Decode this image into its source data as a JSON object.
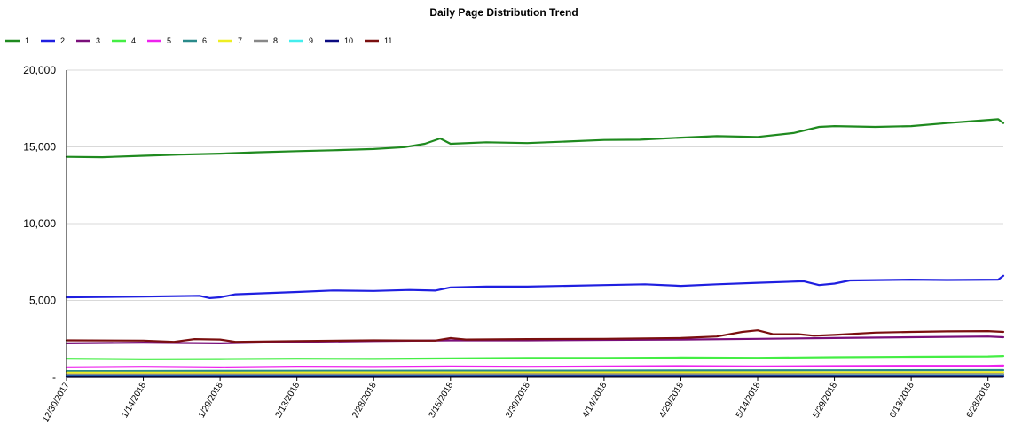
{
  "chart_data": {
    "type": "line",
    "title": "Daily Page Distribution Trend",
    "xlabel": "",
    "ylabel": "",
    "ylim": [
      0,
      20000
    ],
    "yticks": [
      0,
      5000,
      10000,
      15000,
      20000
    ],
    "ytick_labels": [
      "-",
      "5,000",
      "10,000",
      "15,000",
      "20,000"
    ],
    "x_start": "2017-12-30",
    "x_end": "2018-07-01",
    "xtick_labels": [
      "12/30/2017",
      "1/14/2018",
      "1/29/2018",
      "2/13/2018",
      "2/28/2018",
      "3/15/2018",
      "3/30/2018",
      "4/14/2018",
      "4/29/2018",
      "5/14/2018",
      "5/29/2018",
      "6/13/2018",
      "6/28/2018"
    ],
    "grid": true,
    "legend_position": "top-left",
    "series": [
      {
        "name": "1",
        "color": "#1f8a1f",
        "points": [
          [
            "2017-12-30",
            14350
          ],
          [
            "2018-01-06",
            14330
          ],
          [
            "2018-01-14",
            14420
          ],
          [
            "2018-01-21",
            14500
          ],
          [
            "2018-01-29",
            14560
          ],
          [
            "2018-02-05",
            14650
          ],
          [
            "2018-02-13",
            14720
          ],
          [
            "2018-02-20",
            14780
          ],
          [
            "2018-02-28",
            14860
          ],
          [
            "2018-03-06",
            14980
          ],
          [
            "2018-03-10",
            15200
          ],
          [
            "2018-03-13",
            15550
          ],
          [
            "2018-03-15",
            15200
          ],
          [
            "2018-03-22",
            15300
          ],
          [
            "2018-03-30",
            15250
          ],
          [
            "2018-04-07",
            15350
          ],
          [
            "2018-04-14",
            15450
          ],
          [
            "2018-04-21",
            15470
          ],
          [
            "2018-04-29",
            15600
          ],
          [
            "2018-05-06",
            15700
          ],
          [
            "2018-05-14",
            15650
          ],
          [
            "2018-05-21",
            15900
          ],
          [
            "2018-05-26",
            16300
          ],
          [
            "2018-05-29",
            16350
          ],
          [
            "2018-06-06",
            16300
          ],
          [
            "2018-06-13",
            16350
          ],
          [
            "2018-06-20",
            16550
          ],
          [
            "2018-06-26",
            16700
          ],
          [
            "2018-06-30",
            16800
          ],
          [
            "2018-07-01",
            16550
          ]
        ]
      },
      {
        "name": "2",
        "color": "#1f1fe0",
        "points": [
          [
            "2017-12-30",
            5200
          ],
          [
            "2018-01-14",
            5250
          ],
          [
            "2018-01-25",
            5300
          ],
          [
            "2018-01-27",
            5150
          ],
          [
            "2018-01-29",
            5200
          ],
          [
            "2018-02-01",
            5400
          ],
          [
            "2018-02-13",
            5550
          ],
          [
            "2018-02-20",
            5650
          ],
          [
            "2018-02-28",
            5620
          ],
          [
            "2018-03-07",
            5680
          ],
          [
            "2018-03-12",
            5640
          ],
          [
            "2018-03-15",
            5850
          ],
          [
            "2018-03-22",
            5900
          ],
          [
            "2018-03-30",
            5900
          ],
          [
            "2018-04-14",
            6000
          ],
          [
            "2018-04-22",
            6050
          ],
          [
            "2018-04-29",
            5950
          ],
          [
            "2018-05-06",
            6050
          ],
          [
            "2018-05-14",
            6150
          ],
          [
            "2018-05-23",
            6250
          ],
          [
            "2018-05-26",
            6000
          ],
          [
            "2018-05-29",
            6100
          ],
          [
            "2018-06-01",
            6300
          ],
          [
            "2018-06-13",
            6350
          ],
          [
            "2018-06-20",
            6330
          ],
          [
            "2018-06-30",
            6350
          ],
          [
            "2018-07-01",
            6600
          ]
        ]
      },
      {
        "name": "3",
        "color": "#7a0f7a",
        "points": [
          [
            "2017-12-30",
            2200
          ],
          [
            "2018-01-14",
            2250
          ],
          [
            "2018-01-29",
            2200
          ],
          [
            "2018-02-13",
            2300
          ],
          [
            "2018-02-28",
            2350
          ],
          [
            "2018-03-15",
            2400
          ],
          [
            "2018-03-30",
            2400
          ],
          [
            "2018-04-14",
            2430
          ],
          [
            "2018-04-29",
            2450
          ],
          [
            "2018-05-14",
            2500
          ],
          [
            "2018-05-29",
            2550
          ],
          [
            "2018-06-13",
            2600
          ],
          [
            "2018-06-28",
            2650
          ],
          [
            "2018-07-01",
            2600
          ]
        ]
      },
      {
        "name": "4",
        "color": "#44ee44",
        "points": [
          [
            "2017-12-30",
            1200
          ],
          [
            "2018-01-14",
            1170
          ],
          [
            "2018-01-29",
            1180
          ],
          [
            "2018-02-13",
            1200
          ],
          [
            "2018-02-28",
            1190
          ],
          [
            "2018-03-15",
            1220
          ],
          [
            "2018-03-30",
            1250
          ],
          [
            "2018-04-14",
            1250
          ],
          [
            "2018-04-29",
            1280
          ],
          [
            "2018-05-14",
            1260
          ],
          [
            "2018-05-29",
            1300
          ],
          [
            "2018-06-13",
            1330
          ],
          [
            "2018-06-28",
            1350
          ],
          [
            "2018-07-01",
            1380
          ]
        ]
      },
      {
        "name": "5",
        "color": "#ee22ee",
        "points": [
          [
            "2017-12-30",
            650
          ],
          [
            "2018-01-14",
            680
          ],
          [
            "2018-01-29",
            640
          ],
          [
            "2018-02-13",
            690
          ],
          [
            "2018-02-28",
            670
          ],
          [
            "2018-03-15",
            700
          ],
          [
            "2018-03-30",
            680
          ],
          [
            "2018-04-14",
            700
          ],
          [
            "2018-04-29",
            720
          ],
          [
            "2018-05-14",
            700
          ],
          [
            "2018-05-29",
            720
          ],
          [
            "2018-06-13",
            740
          ],
          [
            "2018-06-28",
            740
          ],
          [
            "2018-07-01",
            760
          ]
        ]
      },
      {
        "name": "6",
        "color": "#2a8a8a",
        "points": [
          [
            "2017-12-30",
            400
          ],
          [
            "2018-01-29",
            410
          ],
          [
            "2018-02-28",
            420
          ],
          [
            "2018-03-30",
            430
          ],
          [
            "2018-04-29",
            440
          ],
          [
            "2018-05-29",
            450
          ],
          [
            "2018-07-01",
            460
          ]
        ]
      },
      {
        "name": "7",
        "color": "#eeee22",
        "points": [
          [
            "2017-12-30",
            300
          ],
          [
            "2018-01-29",
            300
          ],
          [
            "2018-02-28",
            310
          ],
          [
            "2018-03-30",
            310
          ],
          [
            "2018-04-29",
            320
          ],
          [
            "2018-05-29",
            320
          ],
          [
            "2018-07-01",
            330
          ]
        ]
      },
      {
        "name": "8",
        "color": "#888888",
        "points": [
          [
            "2017-12-30",
            180
          ],
          [
            "2018-01-29",
            190
          ],
          [
            "2018-02-28",
            190
          ],
          [
            "2018-03-30",
            200
          ],
          [
            "2018-04-29",
            200
          ],
          [
            "2018-05-29",
            210
          ],
          [
            "2018-07-01",
            210
          ]
        ]
      },
      {
        "name": "9",
        "color": "#44eeee",
        "points": [
          [
            "2017-12-30",
            100
          ],
          [
            "2018-01-29",
            100
          ],
          [
            "2018-02-28",
            110
          ],
          [
            "2018-03-30",
            110
          ],
          [
            "2018-04-29",
            110
          ],
          [
            "2018-05-29",
            120
          ],
          [
            "2018-07-01",
            120
          ]
        ]
      },
      {
        "name": "10",
        "color": "#0b0b80",
        "points": [
          [
            "2017-12-30",
            30
          ],
          [
            "2018-02-28",
            30
          ],
          [
            "2018-04-29",
            40
          ],
          [
            "2018-07-01",
            40
          ]
        ]
      },
      {
        "name": "11",
        "color": "#7a0f0f",
        "points": [
          [
            "2017-12-30",
            2400
          ],
          [
            "2018-01-14",
            2380
          ],
          [
            "2018-01-20",
            2300
          ],
          [
            "2018-01-24",
            2480
          ],
          [
            "2018-01-29",
            2450
          ],
          [
            "2018-02-01",
            2300
          ],
          [
            "2018-02-13",
            2350
          ],
          [
            "2018-02-28",
            2400
          ],
          [
            "2018-03-12",
            2380
          ],
          [
            "2018-03-15",
            2550
          ],
          [
            "2018-03-18",
            2450
          ],
          [
            "2018-03-30",
            2480
          ],
          [
            "2018-04-14",
            2500
          ],
          [
            "2018-04-29",
            2550
          ],
          [
            "2018-05-06",
            2650
          ],
          [
            "2018-05-11",
            2950
          ],
          [
            "2018-05-14",
            3050
          ],
          [
            "2018-05-17",
            2800
          ],
          [
            "2018-05-22",
            2800
          ],
          [
            "2018-05-25",
            2700
          ],
          [
            "2018-05-29",
            2750
          ],
          [
            "2018-06-06",
            2900
          ],
          [
            "2018-06-13",
            2950
          ],
          [
            "2018-06-20",
            2980
          ],
          [
            "2018-06-28",
            3000
          ],
          [
            "2018-07-01",
            2950
          ]
        ]
      }
    ]
  }
}
